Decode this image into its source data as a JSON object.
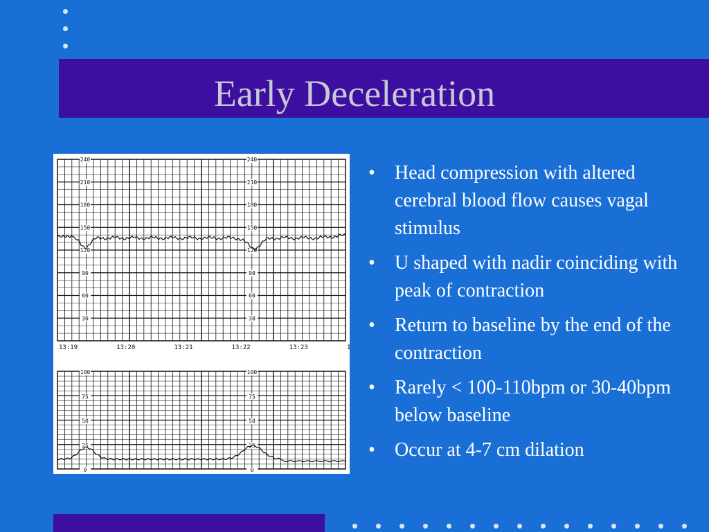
{
  "slide": {
    "title": "Early Deceleration",
    "bullets": [
      {
        "text": "Head compression with altered cerebral blood flow causes vagal stimulus"
      },
      {
        "text": "U shaped with nadir coinciding with peak of contraction"
      },
      {
        "text": "Return to baseline by the end of the contraction"
      },
      {
        "text": "Rarely < 100-110bpm or 30-40bpm below baseline"
      },
      {
        "text": "Occur at 4-7 cm dilation"
      }
    ],
    "bullet_glyph": "•",
    "colors": {
      "background": "#1a6fd6",
      "title_band": "#3d0fa0",
      "title_text": "#c8c8d6",
      "body_text": "#ffffff"
    }
  },
  "tracing": {
    "fhr_scale_labels": [
      "240",
      "210",
      "180",
      "150",
      "120",
      "90",
      "60",
      "30"
    ],
    "toco_scale_labels": [
      "100",
      "75",
      "50",
      "25",
      "0"
    ],
    "time_labels": [
      "13:19",
      "13:20",
      "13:21",
      "13:22",
      "13:23",
      "13:"
    ]
  }
}
